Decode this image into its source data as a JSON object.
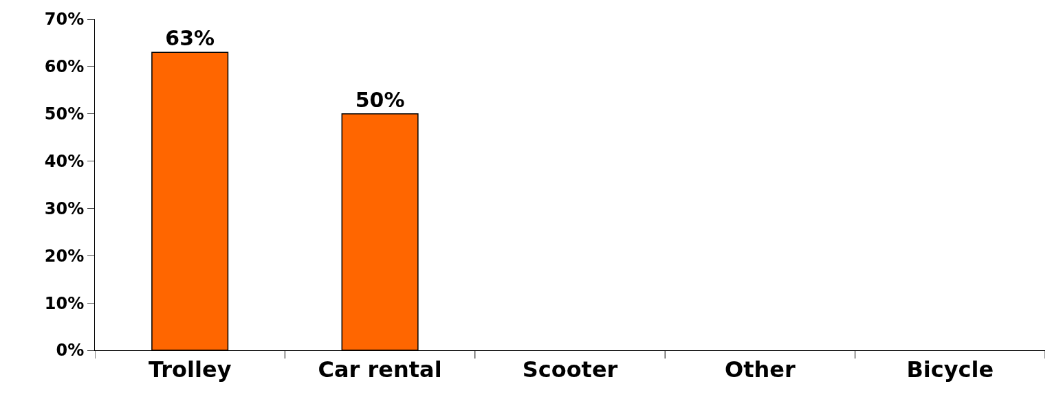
{
  "chart_data": {
    "type": "bar",
    "categories": [
      "Trolley",
      "Car rental",
      "Scooter",
      "Other",
      "Bicycle"
    ],
    "values": [
      63,
      50,
      null,
      null,
      null
    ],
    "value_labels": [
      "63%",
      "50%",
      null,
      null,
      null
    ],
    "color": "#ff6600",
    "ylim": [
      0,
      70
    ],
    "yticks": [
      {
        "value": 0,
        "label": "0%"
      },
      {
        "value": 10,
        "label": "10%"
      },
      {
        "value": 20,
        "label": "20%"
      },
      {
        "value": 30,
        "label": "30%"
      },
      {
        "value": 40,
        "label": "40%"
      },
      {
        "value": 50,
        "label": "50%"
      },
      {
        "value": 60,
        "label": "60%"
      },
      {
        "value": 70,
        "label": "70%"
      }
    ],
    "legend": false
  }
}
